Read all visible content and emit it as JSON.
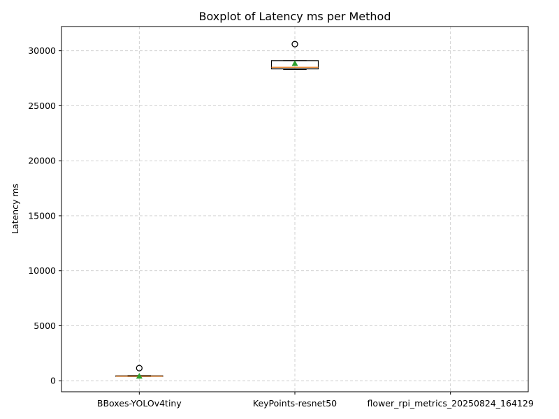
{
  "chart_data": {
    "type": "boxplot",
    "title": "Boxplot of Latency ms per Method",
    "xlabel": "",
    "ylabel": "Latency ms",
    "categories": [
      "BBoxes-YOLOv4tiny",
      "KeyPoints-resnet50",
      "flower_rpi_metrics_20250824_164129"
    ],
    "ylim": [
      -1000,
      32200
    ],
    "yticks": [
      0,
      5000,
      10000,
      15000,
      20000,
      25000,
      30000
    ],
    "ytick_labels": [
      "0",
      "5000",
      "10000",
      "15000",
      "20000",
      "25000",
      "30000"
    ],
    "grid": true,
    "boxes": [
      {
        "name": "BBoxes-YOLOv4tiny",
        "whislo": 390,
        "q1": 400,
        "median": 420,
        "q3": 450,
        "whishi": 470,
        "mean": 430,
        "fliers": [
          1150
        ]
      },
      {
        "name": "KeyPoints-resnet50",
        "whislo": 28300,
        "q1": 28350,
        "median": 28500,
        "q3": 29100,
        "whishi": 29100,
        "mean": 28850,
        "fliers": [
          30600
        ]
      },
      {
        "name": "flower_rpi_metrics_20250824_164129",
        "empty": true
      }
    ],
    "colors": {
      "median": "#e8832a",
      "mean": "#2ca02c",
      "grid": "#cccccc"
    }
  }
}
